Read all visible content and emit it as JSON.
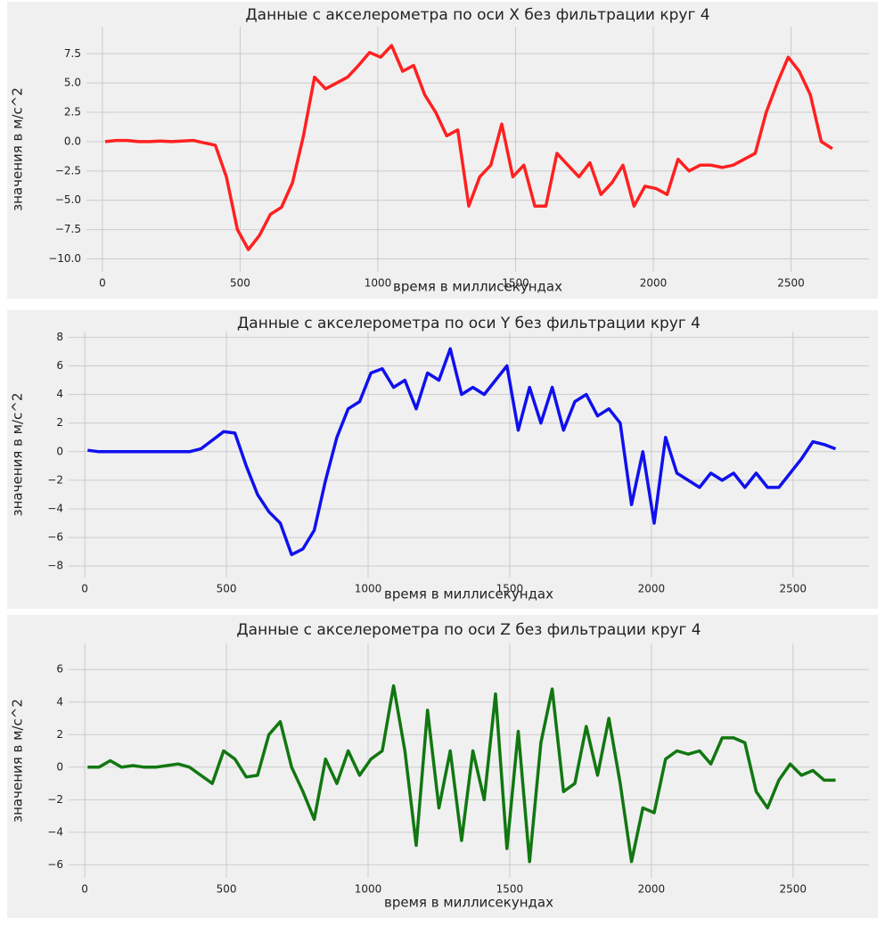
{
  "chart_data": [
    {
      "type": "line",
      "title": "Данные с акселерометра по оси X без фильтрации круг 4",
      "xlabel": "время в миллисекундах",
      "ylabel": "значения в м/с^2",
      "x": [
        10,
        50,
        90,
        130,
        170,
        210,
        250,
        290,
        330,
        370,
        410,
        450,
        490,
        530,
        570,
        610,
        650,
        690,
        730,
        770,
        810,
        850,
        890,
        930,
        970,
        1010,
        1050,
        1090,
        1130,
        1170,
        1210,
        1250,
        1290,
        1330,
        1370,
        1410,
        1450,
        1490,
        1530,
        1570,
        1610,
        1650,
        1690,
        1730,
        1770,
        1810,
        1850,
        1890,
        1930,
        1970,
        2010,
        2050,
        2090,
        2130,
        2170,
        2210,
        2250,
        2290,
        2330,
        2370,
        2410,
        2450,
        2490,
        2530,
        2570,
        2610,
        2650
      ],
      "series": [
        {
          "color": "#ff2020",
          "values": [
            0,
            0.1,
            0.1,
            0,
            0,
            0.05,
            0,
            0.05,
            0.1,
            -0.1,
            -0.3,
            -3,
            -7.5,
            -9.2,
            -8,
            -6.2,
            -5.6,
            -3.5,
            0.5,
            5.5,
            4.5,
            5,
            5.5,
            6.5,
            7.6,
            7.2,
            8.2,
            6,
            6.5,
            4,
            2.5,
            0.5,
            1,
            -5.5,
            -3,
            -2,
            1.5,
            -3,
            -2,
            -5.5,
            -5.5,
            -1,
            -2,
            -3,
            -1.8,
            -4.5,
            -3.5,
            -2,
            -5.5,
            -3.8,
            -4,
            -4.5,
            -1.5,
            -2.5,
            -2,
            -2,
            -2.2,
            -2,
            -1.5,
            -1,
            2.5,
            5,
            7.2,
            6,
            4,
            0,
            -0.6
          ]
        }
      ],
      "xlim": [
        -58,
        2783
      ],
      "ylim": [
        -11.1,
        9.8
      ],
      "xticks": [
        0,
        500,
        1000,
        1500,
        2000,
        2500
      ],
      "yticks": [
        {
          "value": -10,
          "label": "−10.0"
        },
        {
          "value": -7.5,
          "label": "−7.5"
        },
        {
          "value": -5,
          "label": "−5.0"
        },
        {
          "value": -2.5,
          "label": "−2.5"
        },
        {
          "value": 0,
          "label": "0.0"
        },
        2.5,
        {
          "value": 5,
          "label": "5.0"
        },
        7.5
      ],
      "grid": true
    },
    {
      "type": "line",
      "title": "Данные с акселерометра по оси Y без фильтрации круг 4",
      "xlabel": "время в миллисекундах",
      "ylabel": "значения в м/с^2",
      "x": [
        10,
        50,
        90,
        130,
        170,
        210,
        250,
        290,
        330,
        370,
        410,
        450,
        490,
        530,
        570,
        610,
        650,
        690,
        730,
        770,
        810,
        850,
        890,
        930,
        970,
        1010,
        1050,
        1090,
        1130,
        1170,
        1210,
        1250,
        1290,
        1330,
        1370,
        1410,
        1450,
        1490,
        1530,
        1570,
        1610,
        1650,
        1690,
        1730,
        1770,
        1810,
        1850,
        1890,
        1930,
        1970,
        2010,
        2050,
        2090,
        2130,
        2170,
        2210,
        2250,
        2290,
        2330,
        2370,
        2410,
        2450,
        2490,
        2530,
        2570,
        2610,
        2650
      ],
      "series": [
        {
          "color": "#1010ee",
          "values": [
            0.1,
            0,
            0,
            0,
            0,
            0,
            0,
            0,
            0,
            0,
            0.2,
            0.8,
            1.4,
            1.3,
            -1,
            -3,
            -4.2,
            -5,
            -7.2,
            -6.8,
            -5.5,
            -2,
            1,
            3,
            3.5,
            5.5,
            5.8,
            4.5,
            5,
            3,
            5.5,
            5,
            7.2,
            4,
            4.5,
            4,
            5,
            6,
            1.5,
            4.5,
            2,
            4.5,
            1.5,
            3.5,
            4,
            2.5,
            3,
            2,
            -3.7,
            0,
            -5,
            1,
            -1.5,
            -2,
            -2.5,
            -1.5,
            -2,
            -1.5,
            -2.5,
            -1.5,
            -2.5,
            -2.5,
            -1.5,
            -0.5,
            0.7,
            0.5,
            0.2
          ]
        }
      ],
      "xlim": [
        -57,
        2768
      ],
      "ylim": [
        -8.8,
        8.4
      ],
      "xticks": [
        0,
        500,
        1000,
        1500,
        2000,
        2500
      ],
      "yticks": [
        {
          "value": -8,
          "label": "−8"
        },
        {
          "value": -6,
          "label": "−6"
        },
        {
          "value": -4,
          "label": "−4"
        },
        {
          "value": -2,
          "label": "−2"
        },
        0,
        2,
        4,
        6,
        8
      ],
      "grid": true
    },
    {
      "type": "line",
      "title": "Данные с акселерометра по оси Z без фильтрации круг 4",
      "xlabel": "время в миллисекундах",
      "ylabel": "значения в м/с^2",
      "x": [
        10,
        50,
        90,
        130,
        170,
        210,
        250,
        290,
        330,
        370,
        410,
        450,
        490,
        530,
        570,
        610,
        650,
        690,
        730,
        770,
        810,
        850,
        890,
        930,
        970,
        1010,
        1050,
        1090,
        1130,
        1170,
        1210,
        1250,
        1290,
        1330,
        1370,
        1410,
        1450,
        1490,
        1530,
        1570,
        1610,
        1650,
        1690,
        1730,
        1770,
        1810,
        1850,
        1890,
        1930,
        1970,
        2010,
        2050,
        2090,
        2130,
        2170,
        2210,
        2250,
        2290,
        2330,
        2370,
        2410,
        2450,
        2490,
        2530,
        2570,
        2610,
        2650
      ],
      "series": [
        {
          "color": "#117711",
          "values": [
            0,
            0,
            0.4,
            0,
            0.1,
            0,
            0,
            0.1,
            0.2,
            0,
            -0.5,
            -1,
            1,
            0.5,
            -0.6,
            -0.5,
            2,
            2.8,
            0,
            -1.5,
            -3.2,
            0.5,
            -1,
            1,
            -0.5,
            0.5,
            1,
            5,
            1,
            -4.8,
            3.5,
            -2.5,
            1,
            -4.5,
            1,
            -2,
            4.5,
            -5,
            2.2,
            -5.8,
            1.5,
            4.8,
            -1.5,
            -1,
            2.5,
            -0.5,
            3,
            -1,
            -5.8,
            -2.5,
            -2.8,
            0.5,
            1,
            0.8,
            1,
            0.2,
            1.8,
            1.8,
            1.5,
            -1.5,
            -2.5,
            -0.8,
            0.2,
            -0.5,
            -0.2,
            -0.8,
            -0.8
          ]
        }
      ],
      "xlim": [
        -57,
        2768
      ],
      "ylim": [
        -6.8,
        7.6
      ],
      "xticks": [
        0,
        500,
        1000,
        1500,
        2000,
        2500
      ],
      "yticks": [
        {
          "value": -6,
          "label": "−6"
        },
        {
          "value": -4,
          "label": "−4"
        },
        {
          "value": -2,
          "label": "−2"
        },
        0,
        2,
        4,
        6
      ],
      "grid": true
    }
  ]
}
